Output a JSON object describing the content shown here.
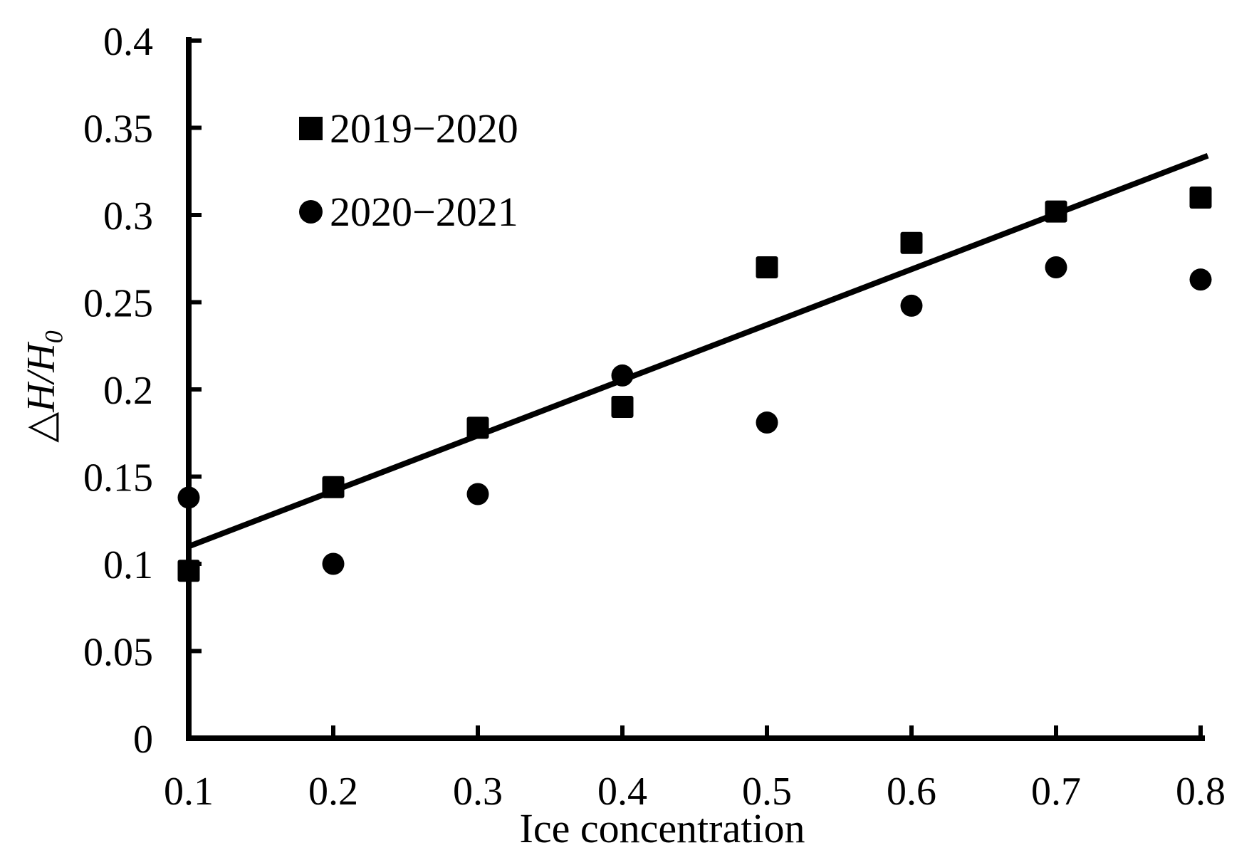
{
  "page": {
    "background": "#ffffff",
    "foreground": "#000000"
  },
  "chart_data": {
    "type": "scatter",
    "title": "",
    "xlabel": "Ice concentration",
    "ylabel": {
      "delta": "△",
      "main": "H/H",
      "sub": "0"
    },
    "xlim": [
      0.1,
      0.8
    ],
    "ylim": [
      0,
      0.4
    ],
    "xticks": [
      "0.1",
      "0.2",
      "0.3",
      "0.4",
      "0.5",
      "0.6",
      "0.7",
      "0.8"
    ],
    "yticks": [
      "0",
      "0.05",
      "0.1",
      "0.15",
      "0.2",
      "0.25",
      "0.3",
      "0.35",
      "0.4"
    ],
    "grid": false,
    "legend_position": "upper-left-inside",
    "color": "#000000",
    "series": [
      {
        "name": "2019−2020",
        "marker": "square",
        "x": [
          0.1,
          0.2,
          0.3,
          0.4,
          0.5,
          0.6,
          0.7,
          0.8
        ],
        "values": [
          0.096,
          0.144,
          0.178,
          0.19,
          0.27,
          0.284,
          0.302,
          0.31
        ]
      },
      {
        "name": "2020−2021",
        "marker": "circle",
        "x": [
          0.1,
          0.2,
          0.3,
          0.4,
          0.5,
          0.6,
          0.7,
          0.8
        ],
        "values": [
          0.138,
          0.1,
          0.14,
          0.208,
          0.181,
          0.248,
          0.27,
          0.263
        ]
      }
    ],
    "trendline": {
      "x1": 0.1,
      "y1": 0.11,
      "x2": 0.805,
      "y2": 0.334
    }
  }
}
